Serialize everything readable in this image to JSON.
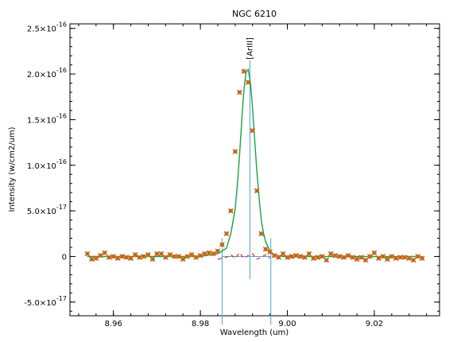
{
  "chart_data": {
    "type": "scatter",
    "title": "NGC 6210",
    "xlabel": "Wavelength (um)",
    "ylabel": "Intensity (w/cm2/um)",
    "xlim": [
      8.95,
      9.035
    ],
    "ylim": [
      -6.5e-17,
      2.55e-16
    ],
    "x_ticks": [
      {
        "value": 8.96,
        "label": "8.96"
      },
      {
        "value": 8.98,
        "label": "8.98"
      },
      {
        "value": 9.0,
        "label": "9.00"
      },
      {
        "value": 9.02,
        "label": "9.02"
      }
    ],
    "y_ticks": [
      {
        "value": -5e-17,
        "mant": "-5.0×10",
        "exp": "-17"
      },
      {
        "value": 0,
        "mant": "0",
        "exp": ""
      },
      {
        "value": 5e-17,
        "mant": "5.0×10",
        "exp": "-17"
      },
      {
        "value": 1e-16,
        "mant": "1.0×10",
        "exp": "-16"
      },
      {
        "value": 1.5e-16,
        "mant": "1.5×10",
        "exp": "-16"
      },
      {
        "value": 2e-16,
        "mant": "2.0×10",
        "exp": "-16"
      },
      {
        "value": 2.5e-16,
        "mant": "2.5×10",
        "exp": "-16"
      }
    ],
    "line_annotation": {
      "label": "[ArIII]",
      "x": 8.9914
    },
    "fit_window": [
      8.985,
      8.9962
    ],
    "series": [
      {
        "style": "star-markers",
        "x": [
          8.954,
          8.955,
          8.956,
          8.957,
          8.958,
          8.959,
          8.96,
          8.961,
          8.962,
          8.963,
          8.964,
          8.965,
          8.966,
          8.967,
          8.968,
          8.969,
          8.97,
          8.971,
          8.972,
          8.973,
          8.974,
          8.975,
          8.976,
          8.977,
          8.978,
          8.979,
          8.98,
          8.981,
          8.982,
          8.983,
          8.984,
          8.985,
          8.986,
          8.987,
          8.988,
          8.989,
          8.99,
          8.991,
          8.992,
          8.993,
          8.994,
          8.995,
          8.996,
          8.997,
          8.998,
          8.999,
          9.0,
          9.001,
          9.002,
          9.003,
          9.004,
          9.005,
          9.006,
          9.007,
          9.008,
          9.009,
          9.01,
          9.011,
          9.012,
          9.013,
          9.014,
          9.015,
          9.016,
          9.017,
          9.018,
          9.019,
          9.02,
          9.021,
          9.022,
          9.023,
          9.024,
          9.025,
          9.026,
          9.027,
          9.028,
          9.029,
          9.03,
          9.031
        ],
        "y": [
          3e-18,
          -3e-18,
          -2e-18,
          1e-18,
          4e-18,
          -1e-18,
          0.0,
          -2e-18,
          0.0,
          -1e-18,
          -2e-18,
          2e-18,
          -1e-18,
          0.0,
          2e-18,
          -3e-18,
          3e-18,
          3e-18,
          -1e-18,
          2e-18,
          0.0,
          0.0,
          -3e-18,
          0.0,
          2e-18,
          -1e-18,
          1e-18,
          3e-18,
          4e-18,
          3e-18,
          6e-18,
          1.3e-17,
          2.5e-17,
          5e-17,
          1.15e-16,
          1.8e-16,
          2.03e-16,
          1.91e-16,
          1.38e-16,
          7.2e-17,
          2.5e-17,
          8e-18,
          5e-18,
          1e-18,
          -1e-18,
          3e-18,
          -1e-18,
          0.0,
          1e-18,
          0.0,
          -1e-18,
          3e-18,
          -2e-18,
          -1e-18,
          0.0,
          -4e-18,
          3e-18,
          1e-18,
          0.0,
          -1e-18,
          1e-18,
          -1e-18,
          -3e-18,
          -1e-18,
          -4e-18,
          0.0,
          4e-18,
          -2e-18,
          0.0,
          -3e-18,
          0.0,
          -2e-18,
          -1e-18,
          -1e-18,
          -2e-18,
          -4e-18,
          0.0,
          -2e-18
        ]
      },
      {
        "style": "fit-curve",
        "x": [
          8.954,
          8.96,
          8.97,
          8.98,
          8.984,
          8.986,
          8.987,
          8.988,
          8.9885,
          8.989,
          8.9895,
          8.99,
          8.9905,
          8.991,
          8.9915,
          8.992,
          8.9925,
          8.993,
          8.9935,
          8.994,
          8.9945,
          8.995,
          8.996,
          8.997,
          8.999,
          9.01,
          9.02,
          9.031
        ],
        "y": [
          0.0,
          0.0,
          0.0,
          0.0,
          3e-18,
          9e-18,
          2.5e-17,
          5.2e-17,
          7.8e-17,
          1.11e-16,
          1.48e-16,
          1.82e-16,
          2.02e-16,
          2.05e-16,
          1.91e-16,
          1.62e-16,
          1.27e-16,
          9.3e-17,
          6.4e-17,
          4e-17,
          2.6e-17,
          1.6e-17,
          6e-18,
          2e-18,
          0.0,
          0.0,
          0.0,
          0.0
        ]
      },
      {
        "style": "residual-dashed",
        "x": [
          8.984,
          8.986,
          8.987,
          8.988,
          8.989,
          8.99,
          8.991,
          8.992,
          8.993,
          8.994,
          8.995,
          8.996
        ],
        "y": [
          -3e-18,
          -1e-18,
          2e-18,
          -2e-18,
          4e-18,
          -2e-18,
          1e-18,
          3e-18,
          -3e-18,
          -1e-18,
          2e-18,
          -2e-18
        ]
      }
    ],
    "grid": false,
    "colors": {
      "points_fill": "#e87818",
      "points_star": "#a06028",
      "fit": "#16a34a",
      "marker_lines": "#4aa8d8",
      "residual": "#dc3030",
      "axes": "#000000"
    }
  }
}
